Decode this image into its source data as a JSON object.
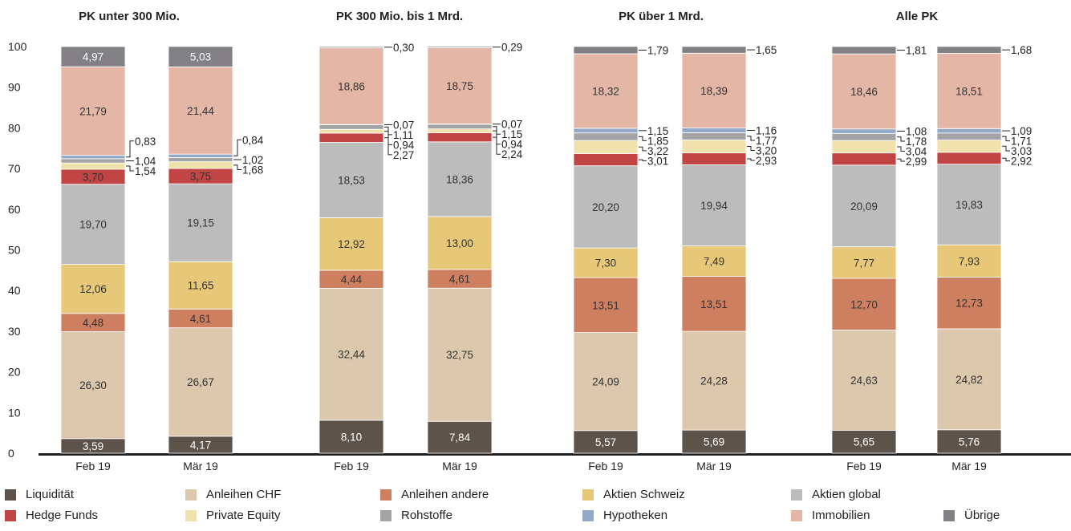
{
  "chart_data": {
    "type": "bar",
    "stacked": true,
    "ylim": [
      0,
      100
    ],
    "yticks": [
      0,
      10,
      20,
      30,
      40,
      50,
      60,
      70,
      80,
      90,
      100
    ],
    "grid": false,
    "legend_position": "bottom",
    "series": [
      {
        "name": "Liquidität",
        "color": "#5e534b"
      },
      {
        "name": "Anleihen CHF",
        "color": "#dcc9ad"
      },
      {
        "name": "Anleihen andere",
        "color": "#cd7f60"
      },
      {
        "name": "Aktien Schweiz",
        "color": "#e7c878"
      },
      {
        "name": "Aktien global",
        "color": "#bdbcbc"
      },
      {
        "name": "Hedge Funds",
        "color": "#c14544"
      },
      {
        "name": "Private Equity",
        "color": "#f0e2ad"
      },
      {
        "name": "Rohstoffe",
        "color": "#a4a3a5"
      },
      {
        "name": "Hypotheken",
        "color": "#92a9c8"
      },
      {
        "name": "Immobilien",
        "color": "#e3b6a6"
      },
      {
        "name": "Übrige",
        "color": "#828084"
      }
    ],
    "groups": [
      {
        "title": "PK unter 300 Mio.",
        "bars": [
          {
            "label": "Feb 19",
            "values": [
              3.59,
              26.3,
              4.48,
              12.06,
              19.7,
              3.7,
              1.54,
              1.04,
              0.83,
              21.79,
              4.97
            ],
            "texts": [
              "3,59",
              "26,30",
              "4,48",
              "12,06",
              "19,70",
              "3,70",
              "1,54",
              "1,04",
              "0,83",
              "21,79",
              "4,97"
            ]
          },
          {
            "label": "Mär 19",
            "values": [
              4.17,
              26.67,
              4.61,
              11.65,
              19.15,
              3.75,
              1.68,
              1.02,
              0.84,
              21.44,
              5.03
            ],
            "texts": [
              "4,17",
              "26,67",
              "4,61",
              "11,65",
              "19,15",
              "3,75",
              "1,68",
              "1,02",
              "0,84",
              "21,44",
              "5,03"
            ]
          }
        ]
      },
      {
        "title": "PK 300 Mio. bis 1 Mrd.",
        "bars": [
          {
            "label": "Feb 19",
            "values": [
              8.1,
              32.44,
              4.44,
              12.92,
              18.53,
              2.27,
              0.94,
              1.11,
              0.07,
              18.86,
              0.3
            ],
            "texts": [
              "8,10",
              "32,44",
              "4,44",
              "12,92",
              "18,53",
              "2,27",
              "0,94",
              "1,11",
              "0,07",
              "18,86",
              "0,30"
            ]
          },
          {
            "label": "Mär 19",
            "values": [
              7.84,
              32.75,
              4.61,
              13.0,
              18.36,
              2.24,
              0.94,
              1.15,
              0.07,
              18.75,
              0.29
            ],
            "texts": [
              "7,84",
              "32,75",
              "4,61",
              "13,00",
              "18,36",
              "2,24",
              "0,94",
              "1,15",
              "0,07",
              "18,75",
              "0,29"
            ]
          }
        ]
      },
      {
        "title": "PK über 1 Mrd.",
        "bars": [
          {
            "label": "Feb 19",
            "values": [
              5.57,
              24.09,
              13.51,
              7.3,
              20.2,
              3.01,
              3.22,
              1.85,
              1.15,
              18.32,
              1.79
            ],
            "texts": [
              "5,57",
              "24,09",
              "13,51",
              "7,30",
              "20,20",
              "3,01",
              "3,22",
              "1,85",
              "1,15",
              "18,32",
              "1,79"
            ]
          },
          {
            "label": "Mär 19",
            "values": [
              5.69,
              24.28,
              13.51,
              7.49,
              19.94,
              2.93,
              3.2,
              1.77,
              1.16,
              18.39,
              1.65
            ],
            "texts": [
              "5,69",
              "24,28",
              "13,51",
              "7,49",
              "19,94",
              "2,93",
              "3,20",
              "1,77",
              "1,16",
              "18,39",
              "1,65"
            ]
          }
        ]
      },
      {
        "title": "Alle PK",
        "bars": [
          {
            "label": "Feb 19",
            "values": [
              5.65,
              24.63,
              12.7,
              7.77,
              20.09,
              2.99,
              3.04,
              1.78,
              1.08,
              18.46,
              1.81
            ],
            "texts": [
              "5,65",
              "24,63",
              "12,70",
              "7,77",
              "20,09",
              "2,99",
              "3,04",
              "1,78",
              "1,08",
              "18,46",
              "1,81"
            ]
          },
          {
            "label": "Mär 19",
            "values": [
              5.76,
              24.82,
              12.73,
              7.93,
              19.83,
              2.92,
              3.03,
              1.71,
              1.09,
              18.51,
              1.68
            ],
            "texts": [
              "5,76",
              "24,82",
              "12,73",
              "7,93",
              "19,83",
              "2,92",
              "3,03",
              "1,71",
              "1,09",
              "18,51",
              "1,68"
            ]
          }
        ]
      }
    ]
  }
}
